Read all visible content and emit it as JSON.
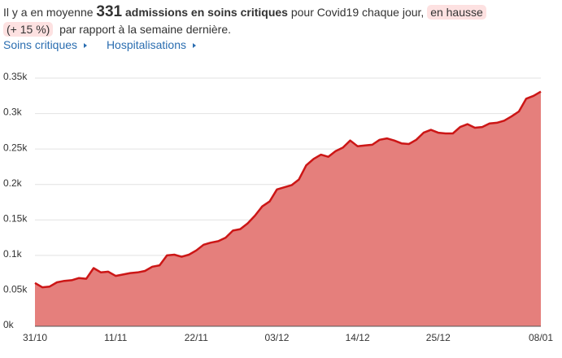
{
  "headline": {
    "prefix": "Il y a en moyenne",
    "number": 331,
    "label": "admissions en soins critiques",
    "suffix": "pour Covid19 chaque jour,",
    "trend": "en hausse",
    "change": "(+ 15 %)",
    "end": "par rapport à la semaine dernière."
  },
  "links": [
    "Soins critiques",
    "Hospitalisations"
  ],
  "chart_data": {
    "type": "area",
    "categories": [
      "31/10",
      null,
      null,
      null,
      null,
      null,
      null,
      null,
      null,
      null,
      null,
      "11/11",
      null,
      null,
      null,
      null,
      null,
      null,
      null,
      null,
      null,
      null,
      "22/11",
      null,
      null,
      null,
      null,
      null,
      null,
      null,
      null,
      null,
      null,
      "03/12",
      null,
      null,
      null,
      null,
      null,
      null,
      null,
      null,
      null,
      null,
      "14/12",
      null,
      null,
      null,
      null,
      null,
      null,
      null,
      null,
      null,
      null,
      "25/12",
      null,
      null,
      null,
      null,
      null,
      null,
      null,
      null,
      null,
      null,
      null,
      null,
      null,
      "08/01"
    ],
    "series": [
      {
        "color": "#cc1616",
        "fill": "#e57f7c",
        "values": [
          61,
          55,
          56,
          62,
          64,
          65,
          68,
          67,
          82,
          76,
          77,
          71,
          73,
          75,
          76,
          78,
          84,
          86,
          100,
          101,
          98,
          101,
          107,
          115,
          118,
          120,
          125,
          135,
          137,
          145,
          156,
          169,
          176,
          193,
          196,
          199,
          207,
          227,
          236,
          242,
          239,
          247,
          252,
          262,
          254,
          255,
          256,
          263,
          265,
          262,
          258,
          257,
          263,
          273,
          277,
          273,
          272,
          272,
          281,
          285,
          280,
          281,
          286,
          287,
          290,
          296,
          303,
          321,
          325,
          331
        ]
      }
    ],
    "ylim": [
      0,
      350
    ],
    "yticks": [
      {
        "value": 0,
        "label": "0k"
      },
      {
        "value": 50,
        "label": "0.05k"
      },
      {
        "value": 100,
        "label": "0.1k"
      },
      {
        "value": 150,
        "label": "0.15k"
      },
      {
        "value": 200,
        "label": "0.2k"
      },
      {
        "value": 250,
        "label": "0.25k"
      },
      {
        "value": 300,
        "label": "0.3k"
      },
      {
        "value": 350,
        "label": "0.35k"
      }
    ],
    "grid": true
  }
}
